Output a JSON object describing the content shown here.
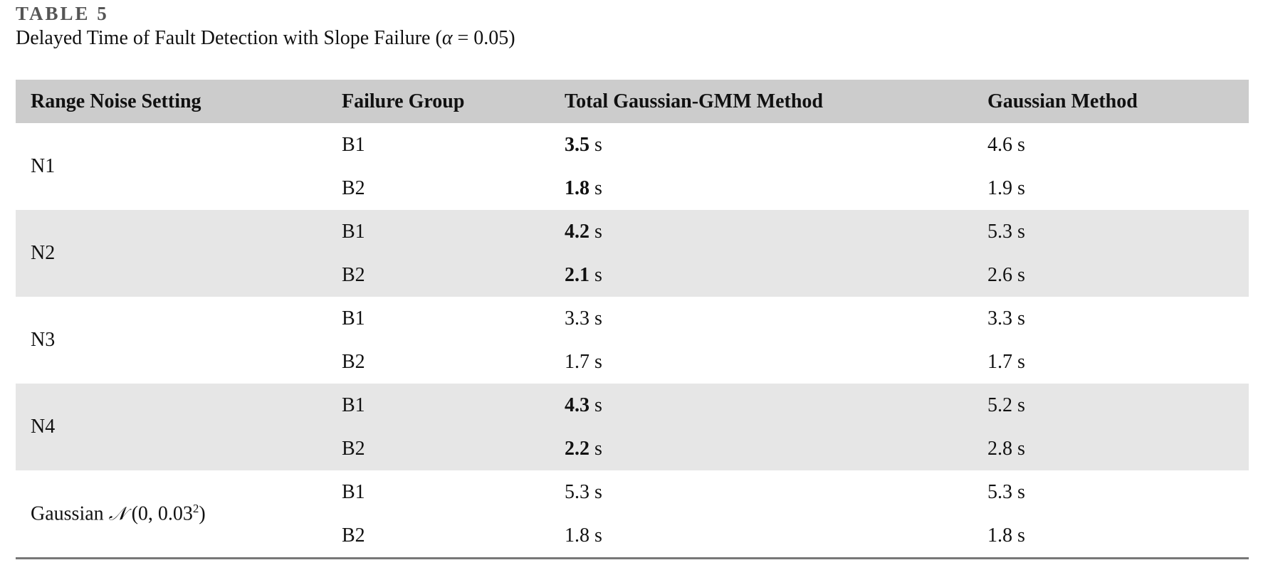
{
  "caption": {
    "label": "TABLE 5",
    "title_prefix": "Delayed Time of Fault Detection with Slope Failure (",
    "title_symbol": "α",
    "title_mid": " = 0.05)"
  },
  "table": {
    "headers": [
      "Range Noise Setting",
      "Failure Group",
      "Total Gaussian-GMM Method",
      "Gaussian Method"
    ],
    "unit": "s",
    "groups": [
      {
        "setting": "N1",
        "rows": [
          {
            "group": "B1",
            "gmm": "3.5",
            "gaussian": "4.6",
            "gmm_bold": true
          },
          {
            "group": "B2",
            "gmm": "1.8",
            "gaussian": "1.9",
            "gmm_bold": true
          }
        ]
      },
      {
        "setting": "N2",
        "rows": [
          {
            "group": "B1",
            "gmm": "4.2",
            "gaussian": "5.3",
            "gmm_bold": true
          },
          {
            "group": "B2",
            "gmm": "2.1",
            "gaussian": "2.6",
            "gmm_bold": true
          }
        ]
      },
      {
        "setting": "N3",
        "rows": [
          {
            "group": "B1",
            "gmm": "3.3",
            "gaussian": "3.3",
            "gmm_bold": false
          },
          {
            "group": "B2",
            "gmm": "1.7",
            "gaussian": "1.7",
            "gmm_bold": false
          }
        ]
      },
      {
        "setting": "N4",
        "rows": [
          {
            "group": "B1",
            "gmm": "4.3",
            "gaussian": "5.2",
            "gmm_bold": true
          },
          {
            "group": "B2",
            "gmm": "2.2",
            "gaussian": "2.8",
            "gmm_bold": true
          }
        ]
      },
      {
        "setting_prefix": "Gaussian ",
        "setting_symbol": "𝒩",
        "setting_args": " (0, 0.03",
        "setting_exp": "2",
        "setting_close": ")",
        "rows": [
          {
            "group": "B1",
            "gmm": "5.3",
            "gaussian": "5.3",
            "gmm_bold": false
          },
          {
            "group": "B2",
            "gmm": "1.8",
            "gaussian": "1.8",
            "gmm_bold": false
          }
        ]
      }
    ]
  }
}
